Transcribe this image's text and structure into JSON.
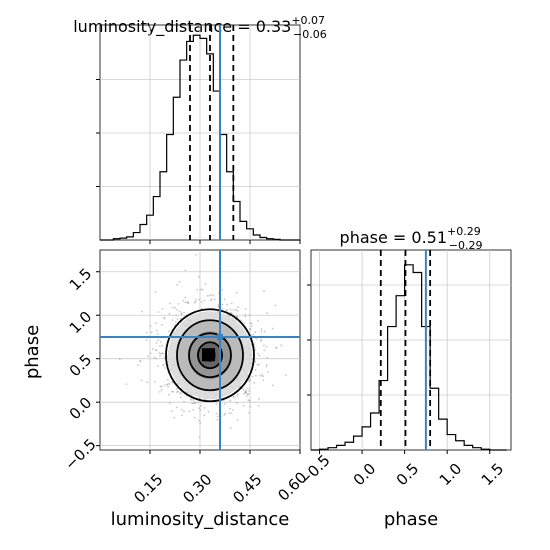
{
  "chart_data": [
    {
      "type": "histogram",
      "panel": "top-left",
      "title_param": "luminosity_distance",
      "title_value": "0.33",
      "title_plus": "+0.07",
      "title_minus": "−0.06",
      "xlim": [
        0.0,
        0.6
      ],
      "bin_edges": [
        0.0,
        0.02,
        0.04,
        0.06,
        0.08,
        0.1,
        0.12,
        0.14,
        0.16,
        0.18,
        0.2,
        0.22,
        0.24,
        0.26,
        0.28,
        0.3,
        0.32,
        0.34,
        0.36,
        0.38,
        0.4,
        0.42,
        0.44,
        0.46,
        0.48,
        0.5,
        0.52,
        0.54,
        0.56,
        0.58,
        0.6
      ],
      "counts": [
        0,
        0,
        2,
        3,
        5,
        12,
        25,
        40,
        70,
        110,
        170,
        230,
        290,
        320,
        330,
        325,
        300,
        240,
        170,
        110,
        62,
        30,
        18,
        8,
        4,
        2,
        1,
        0,
        0,
        0
      ],
      "quantiles": [
        0.27,
        0.33,
        0.4
      ],
      "truth": 0.36,
      "grid": true
    },
    {
      "type": "histogram",
      "panel": "bottom-right",
      "title_param": "phase",
      "title_value": "0.51",
      "title_plus": "+0.29",
      "title_minus": "−0.29",
      "xlim": [
        -0.6,
        1.75
      ],
      "bin_edges": [
        -0.6,
        -0.5,
        -0.4,
        -0.3,
        -0.2,
        -0.1,
        0.0,
        0.1,
        0.2,
        0.3,
        0.4,
        0.5,
        0.6,
        0.7,
        0.8,
        0.9,
        1.0,
        1.1,
        1.2,
        1.3,
        1.4,
        1.5,
        1.6,
        1.7
      ],
      "counts": [
        0,
        1,
        3,
        6,
        10,
        18,
        30,
        48,
        90,
        160,
        200,
        240,
        230,
        160,
        80,
        40,
        20,
        12,
        6,
        3,
        1,
        0,
        0
      ],
      "quantiles": [
        0.22,
        0.51,
        0.8
      ],
      "truth": 0.75,
      "grid": true
    },
    {
      "type": "scatter-density",
      "panel": "bottom-left",
      "xlim": [
        0.0,
        0.6
      ],
      "ylim": [
        -0.55,
        1.75
      ],
      "center": [
        0.33,
        0.54
      ],
      "contour_levels_sigma": [
        0.5,
        1.0,
        1.5,
        2.0
      ],
      "truth": [
        0.36,
        0.75
      ],
      "grid": true
    }
  ],
  "axes": {
    "x_param_label": "luminosity_distance",
    "y_param_label": "phase",
    "lum_ticks": [
      "0.15",
      "0.30",
      "0.45",
      "0.60"
    ],
    "phase_ticks": [
      "−0.5",
      "0.0",
      "0.5",
      "1.0",
      "1.5"
    ]
  },
  "colors": {
    "truth": "#3b82c4",
    "line": "#000000",
    "grid": "#cccccc"
  }
}
